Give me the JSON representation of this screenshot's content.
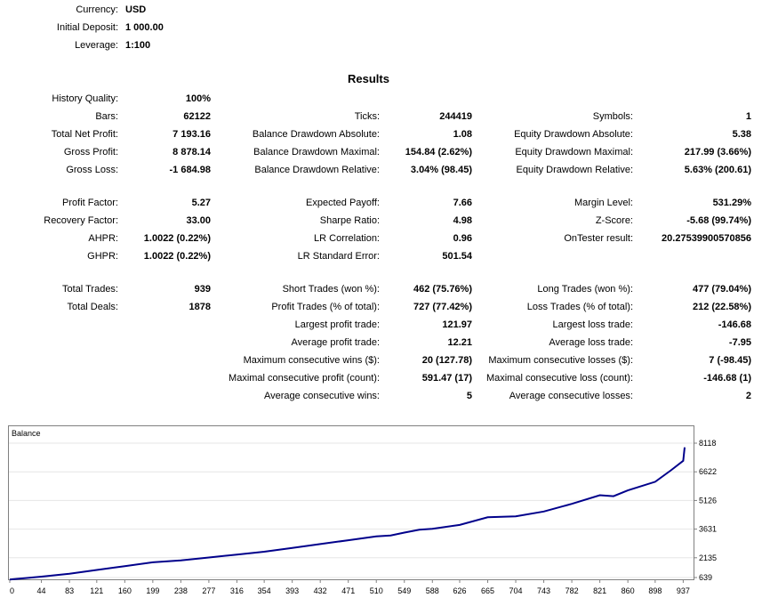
{
  "header": {
    "currency_label": "Currency:",
    "currency_value": "USD",
    "deposit_label": "Initial Deposit:",
    "deposit_value": "1 000.00",
    "leverage_label": "Leverage:",
    "leverage_value": "1:100"
  },
  "results_title": "Results",
  "col1": [
    {
      "label": "History Quality:",
      "value": "100%"
    },
    {
      "label": "Bars:",
      "value": "62122"
    },
    {
      "label": "Total Net Profit:",
      "value": "7 193.16"
    },
    {
      "label": "Gross Profit:",
      "value": "8 878.14"
    },
    {
      "label": "Gross Loss:",
      "value": "-1 684.98"
    },
    {
      "label": "Profit Factor:",
      "value": "5.27"
    },
    {
      "label": "Recovery Factor:",
      "value": "33.00"
    },
    {
      "label": "AHPR:",
      "value": "1.0022 (0.22%)"
    },
    {
      "label": "GHPR:",
      "value": "1.0022 (0.22%)"
    },
    {
      "label": "Total Trades:",
      "value": "939"
    },
    {
      "label": "Total Deals:",
      "value": "1878"
    }
  ],
  "col2": [
    {
      "label": "Ticks:",
      "value": "244419"
    },
    {
      "label": "Balance Drawdown Absolute:",
      "value": "1.08"
    },
    {
      "label": "Balance Drawdown Maximal:",
      "value": "154.84 (2.62%)"
    },
    {
      "label": "Balance Drawdown Relative:",
      "value": "3.04% (98.45)"
    },
    {
      "label": "Expected Payoff:",
      "value": "7.66"
    },
    {
      "label": "Sharpe Ratio:",
      "value": "4.98"
    },
    {
      "label": "LR Correlation:",
      "value": "0.96"
    },
    {
      "label": "LR Standard Error:",
      "value": "501.54"
    },
    {
      "label": "Short Trades (won %):",
      "value": "462 (75.76%)"
    },
    {
      "label": "Profit Trades (% of total):",
      "value": "727 (77.42%)"
    },
    {
      "label": "Largest profit trade:",
      "value": "121.97"
    },
    {
      "label": "Average profit trade:",
      "value": "12.21"
    },
    {
      "label": "Maximum consecutive wins ($):",
      "value": "20 (127.78)"
    },
    {
      "label": "Maximal consecutive profit (count):",
      "value": "591.47 (17)"
    },
    {
      "label": "Average consecutive wins:",
      "value": "5"
    }
  ],
  "col3": [
    {
      "label": "Symbols:",
      "value": "1"
    },
    {
      "label": "Equity Drawdown Absolute:",
      "value": "5.38"
    },
    {
      "label": "Equity Drawdown Maximal:",
      "value": "217.99 (3.66%)"
    },
    {
      "label": "Equity Drawdown Relative:",
      "value": "5.63% (200.61)"
    },
    {
      "label": "Margin Level:",
      "value": "531.29%"
    },
    {
      "label": "Z-Score:",
      "value": "-5.68 (99.74%)"
    },
    {
      "label": "OnTester result:",
      "value": "20.27539900570856"
    },
    {
      "label": "Long Trades (won %):",
      "value": "477 (79.04%)"
    },
    {
      "label": "Loss Trades (% of total):",
      "value": "212 (22.58%)"
    },
    {
      "label": "Largest loss trade:",
      "value": "-146.68"
    },
    {
      "label": "Average loss trade:",
      "value": "-7.95"
    },
    {
      "label": "Maximum consecutive losses ($):",
      "value": "7 (-98.45)"
    },
    {
      "label": "Maximal consecutive loss (count):",
      "value": "-146.68 (1)"
    },
    {
      "label": "Average consecutive losses:",
      "value": "2"
    }
  ],
  "chart_data": {
    "type": "line",
    "title": "Balance",
    "line_color": "#00008b",
    "x_ticks": [
      "0",
      "44",
      "83",
      "121",
      "160",
      "199",
      "238",
      "277",
      "316",
      "354",
      "393",
      "432",
      "471",
      "510",
      "549",
      "588",
      "626",
      "665",
      "704",
      "743",
      "782",
      "821",
      "860",
      "898",
      "937"
    ],
    "y_ticks": [
      "8118",
      "6622",
      "5126",
      "3631",
      "2135",
      "639"
    ],
    "xlim": [
      0,
      939
    ],
    "ylim": [
      639,
      8118
    ],
    "series": [
      {
        "x": [
          0,
          44,
          83,
          121,
          160,
          199,
          238,
          277,
          316,
          354,
          393,
          432,
          471,
          510,
          530,
          549,
          570,
          588,
          626,
          665,
          704,
          743,
          782,
          821,
          840,
          860,
          898,
          920,
          937,
          939
        ],
        "y": [
          1000,
          1150,
          1300,
          1500,
          1700,
          1900,
          2000,
          2150,
          2300,
          2450,
          2650,
          2850,
          3050,
          3250,
          3300,
          3450,
          3600,
          3650,
          3850,
          4250,
          4300,
          4550,
          4950,
          5400,
          5350,
          5650,
          6100,
          6700,
          7200,
          7900
        ]
      }
    ]
  }
}
